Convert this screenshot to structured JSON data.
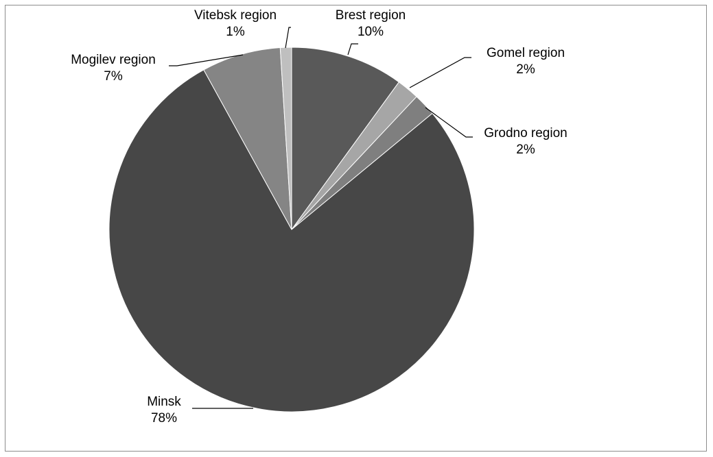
{
  "chart_data": {
    "type": "pie",
    "title": "",
    "legend": "none",
    "slices": [
      {
        "name": "Brest region",
        "value": 10,
        "percent_label": "10%",
        "color": "#595959"
      },
      {
        "name": "Gomel region",
        "value": 2,
        "percent_label": "2%",
        "color": "#a6a6a6"
      },
      {
        "name": "Grodno region",
        "value": 2,
        "percent_label": "2%",
        "color": "#7f7f7f"
      },
      {
        "name": "Minsk",
        "value": 78,
        "percent_label": "78%",
        "color": "#474747"
      },
      {
        "name": "Mogilev region",
        "value": 7,
        "percent_label": "7%",
        "color": "#858585"
      },
      {
        "name": "Vitebsk region",
        "value": 1,
        "percent_label": "1%",
        "color": "#bfbfbf"
      }
    ]
  }
}
